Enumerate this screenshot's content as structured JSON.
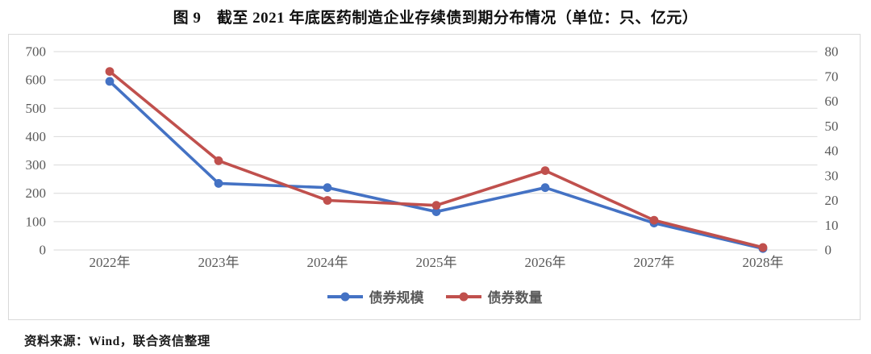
{
  "title": "图 9　截至 2021 年底医药制造企业存续债到期分布情况（单位：只、亿元）",
  "source": "资料来源：Wind，联合资信整理",
  "colors": {
    "axis_text": "#595959",
    "grid": "#d9d9d9",
    "chart_border": "#d9d9d9",
    "series_scale_blue": "#4472c4",
    "series_count_red": "#c0504d"
  },
  "chart_data": {
    "type": "line",
    "title": "截至 2021 年底医药制造企业存续债到期分布情况",
    "units": "只、亿元",
    "categories": [
      "2022年",
      "2023年",
      "2024年",
      "2025年",
      "2026年",
      "2027年",
      "2028年"
    ],
    "series": [
      {
        "name": "债券规模",
        "axis": "left",
        "unit": "亿元",
        "color": "#4472c4",
        "values": [
          595,
          235,
          220,
          135,
          220,
          95,
          5
        ]
      },
      {
        "name": "债券数量",
        "axis": "right",
        "unit": "只",
        "color": "#c0504d",
        "values": [
          72,
          36,
          20,
          18,
          32,
          12,
          1
        ]
      }
    ],
    "left_axis": {
      "min": 0,
      "max": 700,
      "step": 100,
      "tick_labels": [
        "700",
        "600",
        "500",
        "400",
        "300",
        "200",
        "100",
        "0"
      ]
    },
    "right_axis": {
      "min": 0,
      "max": 80,
      "step": 10,
      "tick_labels": [
        "80",
        "70",
        "60",
        "50",
        "40",
        "30",
        "20",
        "10",
        "0"
      ]
    },
    "grid": "horizontal",
    "legend_position": "bottom"
  }
}
